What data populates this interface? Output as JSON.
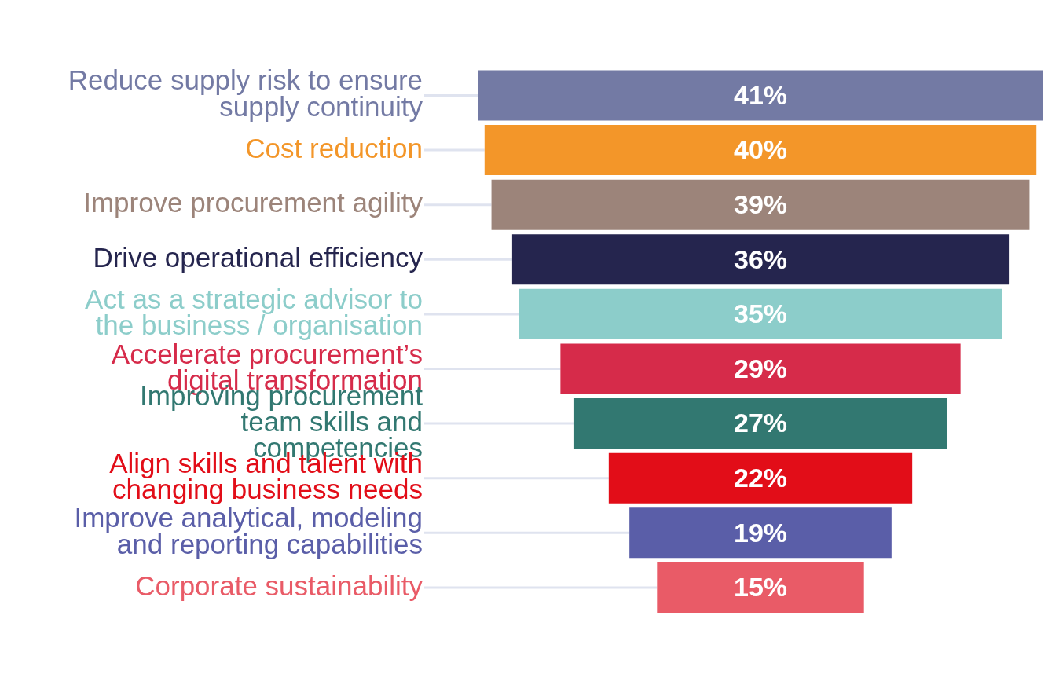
{
  "chart_data": {
    "type": "bar",
    "orientation": "horizontal",
    "categories": [
      [
        "Reduce supply risk to ensure",
        "supply continuity"
      ],
      [
        "Cost reduction"
      ],
      [
        "Improve procurement agility"
      ],
      [
        "Drive operational efficiency"
      ],
      [
        "Act as a strategic advisor to",
        "the business / organisation"
      ],
      [
        "Accelerate procurement’s",
        "digital transformation"
      ],
      [
        "Improving procurement",
        "team skills and",
        "competencies"
      ],
      [
        "Align skills and talent with",
        "changing business needs"
      ],
      [
        "Improve analytical, modeling",
        "and reporting capabilities"
      ],
      [
        "Corporate sustainability"
      ]
    ],
    "values": [
      41,
      40,
      39,
      36,
      35,
      29,
      27,
      22,
      19,
      15
    ],
    "value_labels": [
      "41%",
      "40%",
      "39%",
      "36%",
      "35%",
      "29%",
      "27%",
      "22%",
      "19%",
      "15%"
    ],
    "colors": [
      "#737aa4",
      "#f39629",
      "#9c847a",
      "#25254e",
      "#8ccdca",
      "#d62b4a",
      "#327871",
      "#e20d18",
      "#5a5ea8",
      "#e95b67"
    ],
    "xlim": [
      0,
      41
    ],
    "grid": false,
    "tick_labels": "y",
    "data_labels": true
  }
}
